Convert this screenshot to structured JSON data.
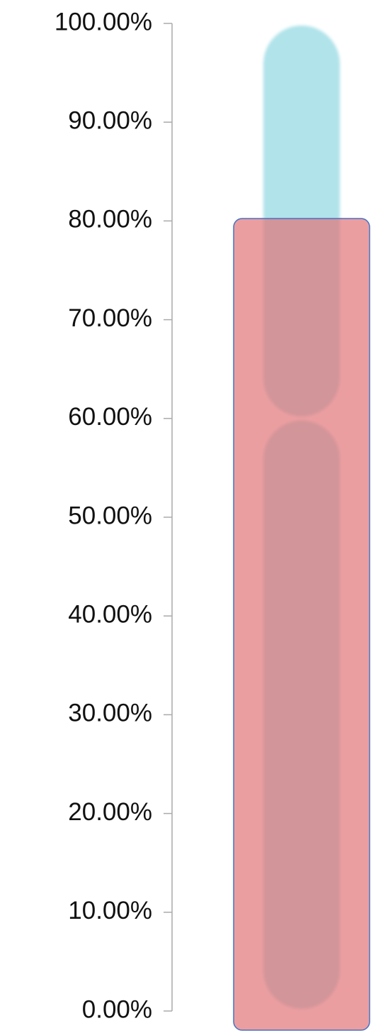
{
  "chart_data": {
    "type": "bar",
    "stacked": true,
    "categories": [
      null
    ],
    "series": [
      {
        "color": "#b0e3ea",
        "values": [
          60
        ]
      },
      {
        "color": "#b0e3ea",
        "values": [
          40
        ]
      }
    ],
    "ylim": [
      0,
      100
    ],
    "yticks": [
      {
        "value": 0,
        "label": "0.00%"
      },
      {
        "value": 10,
        "label": "10.00%"
      },
      {
        "value": 20,
        "label": "20.00%"
      },
      {
        "value": 30,
        "label": "30.00%"
      },
      {
        "value": 40,
        "label": "40.00%"
      },
      {
        "value": 50,
        "label": "50.00%"
      },
      {
        "value": 60,
        "label": "60.00%"
      },
      {
        "value": 70,
        "label": "70.00%"
      },
      {
        "value": 80,
        "label": "80.00%"
      },
      {
        "value": 90,
        "label": "90.00%"
      },
      {
        "value": 100,
        "label": "100.00%"
      }
    ]
  }
}
